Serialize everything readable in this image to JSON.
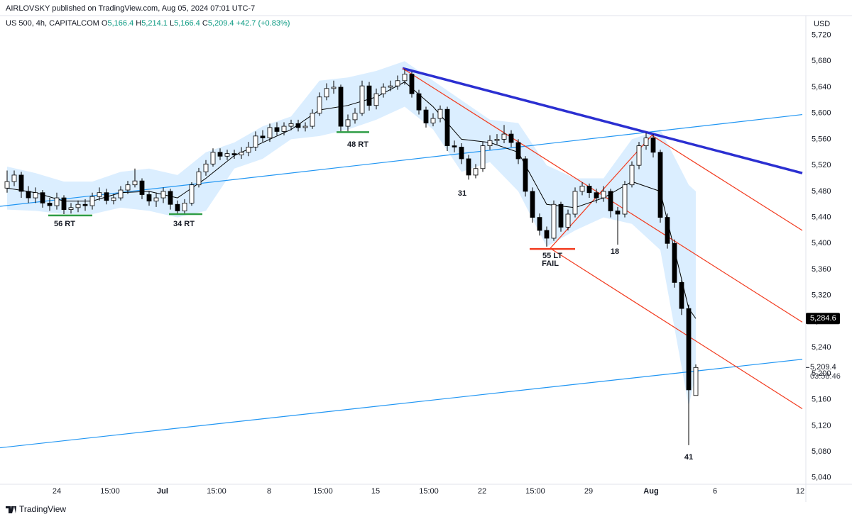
{
  "chart_data": {
    "type": "candlestick",
    "publisher": "AIRLOVSKY published on TradingView.com, Aug 05, 2024 07:01 UTC-7",
    "symbol": "US 500, 4h, CAPITALCOM",
    "ohlc": [
      {
        "label": "O",
        "value": "5,166.4"
      },
      {
        "label": "H",
        "value": "5,214.1"
      },
      {
        "label": "L",
        "value": "5,166.4"
      },
      {
        "label": "C",
        "value": "5,209.4"
      }
    ],
    "change": "+42.7 (+0.83%)",
    "currency": "USD",
    "brand": "TradingView",
    "up_color": "#ffffff",
    "down_color": "#000000",
    "x": [
      0,
      2,
      4,
      6,
      8,
      10,
      12,
      14,
      16,
      18,
      20,
      22,
      24,
      26,
      28,
      30,
      32,
      34,
      36,
      38,
      40,
      42,
      44,
      46,
      48,
      50,
      52,
      54,
      56,
      58,
      60,
      62,
      64,
      66,
      68,
      70,
      72,
      74,
      76,
      78,
      80,
      82,
      84,
      86,
      88,
      90,
      92,
      94,
      96,
      98,
      100,
      102,
      104,
      106,
      108,
      110,
      112,
      114,
      116,
      118,
      120,
      122,
      124,
      126,
      128,
      130,
      132,
      134,
      136,
      138,
      140,
      142,
      144,
      146,
      148,
      150,
      152,
      154,
      156,
      158,
      160,
      162,
      164,
      166,
      168,
      170,
      172,
      174,
      176,
      178,
      180,
      182,
      184,
      186,
      188,
      190,
      192,
      194
    ],
    "open": [
      5485,
      5495,
      5505,
      5480,
      5470,
      5478,
      5462,
      5458,
      5470,
      5452,
      5455,
      5460,
      5458,
      5472,
      5478,
      5466,
      5470,
      5482,
      5490,
      5496,
      5475,
      5465,
      5470,
      5480,
      5460,
      5450,
      5462,
      5490,
      5510,
      5522,
      5540,
      5534,
      5538,
      5536,
      5540,
      5548,
      5565,
      5562,
      5578,
      5572,
      5580,
      5584,
      5578,
      5580,
      5600,
      5625,
      5638,
      5640,
      5580,
      5590,
      5600,
      5642,
      5612,
      5630,
      5640,
      5642,
      5650,
      5660,
      5630,
      5605,
      5585,
      5592,
      5606,
      5550,
      5548,
      5530,
      5505,
      5515,
      5550,
      5558,
      5560,
      5568,
      5555,
      5530,
      5480,
      5440,
      5420,
      5408,
      5460,
      5425,
      5445,
      5480,
      5488,
      5478,
      5470,
      5480,
      5450,
      5445,
      5490,
      5520,
      5550,
      5562,
      5540,
      5440,
      5400,
      5340,
      5300,
      5166.4
    ],
    "high": [
      5512,
      5512,
      5510,
      5488,
      5486,
      5482,
      5470,
      5478,
      5474,
      5462,
      5466,
      5468,
      5478,
      5486,
      5484,
      5476,
      5488,
      5496,
      5515,
      5500,
      5480,
      5478,
      5486,
      5484,
      5466,
      5468,
      5494,
      5516,
      5528,
      5546,
      5546,
      5544,
      5544,
      5548,
      5556,
      5572,
      5574,
      5584,
      5586,
      5586,
      5590,
      5590,
      5586,
      5606,
      5632,
      5646,
      5650,
      5644,
      5598,
      5608,
      5650,
      5648,
      5638,
      5646,
      5650,
      5658,
      5668,
      5664,
      5636,
      5610,
      5600,
      5612,
      5610,
      5558,
      5554,
      5536,
      5522,
      5556,
      5566,
      5568,
      5582,
      5574,
      5560,
      5534,
      5486,
      5446,
      5426,
      5466,
      5464,
      5452,
      5486,
      5494,
      5492,
      5484,
      5488,
      5484,
      5456,
      5496,
      5526,
      5556,
      5570,
      5568,
      5544,
      5446,
      5406,
      5346,
      5306,
      5214.1
    ],
    "low": [
      5478,
      5488,
      5470,
      5462,
      5462,
      5455,
      5450,
      5452,
      5445,
      5446,
      5448,
      5450,
      5452,
      5466,
      5460,
      5460,
      5466,
      5476,
      5486,
      5468,
      5458,
      5456,
      5462,
      5452,
      5444,
      5446,
      5458,
      5486,
      5504,
      5518,
      5528,
      5528,
      5530,
      5530,
      5534,
      5542,
      5556,
      5556,
      5566,
      5566,
      5574,
      5572,
      5572,
      5576,
      5596,
      5620,
      5630,
      5572,
      5572,
      5584,
      5596,
      5604,
      5606,
      5624,
      5634,
      5636,
      5644,
      5624,
      5598,
      5578,
      5580,
      5586,
      5542,
      5540,
      5522,
      5498,
      5500,
      5510,
      5544,
      5552,
      5554,
      5548,
      5522,
      5472,
      5432,
      5412,
      5395,
      5404,
      5418,
      5420,
      5440,
      5474,
      5470,
      5462,
      5464,
      5440,
      5398,
      5440,
      5486,
      5514,
      5544,
      5532,
      5432,
      5392,
      5332,
      5290,
      5090,
      5166.4
    ],
    "close": [
      5495,
      5505,
      5480,
      5470,
      5478,
      5462,
      5458,
      5470,
      5452,
      5455,
      5460,
      5458,
      5472,
      5478,
      5466,
      5470,
      5482,
      5490,
      5496,
      5475,
      5465,
      5470,
      5480,
      5460,
      5450,
      5462,
      5490,
      5510,
      5522,
      5540,
      5534,
      5538,
      5536,
      5540,
      5548,
      5565,
      5562,
      5578,
      5572,
      5580,
      5584,
      5578,
      5580,
      5600,
      5625,
      5638,
      5640,
      5580,
      5590,
      5600,
      5642,
      5612,
      5630,
      5640,
      5642,
      5650,
      5660,
      5630,
      5605,
      5585,
      5592,
      5606,
      5550,
      5548,
      5530,
      5505,
      5515,
      5550,
      5558,
      5560,
      5568,
      5555,
      5530,
      5480,
      5440,
      5420,
      5408,
      5460,
      5425,
      5445,
      5480,
      5488,
      5478,
      5470,
      5480,
      5450,
      5445,
      5490,
      5520,
      5550,
      5562,
      5540,
      5440,
      5400,
      5340,
      5300,
      5175,
      5209.4
    ],
    "band": {
      "color": "#dbeeff",
      "x": [
        0,
        8,
        16,
        24,
        32,
        40,
        48,
        56,
        64,
        72,
        80,
        88,
        96,
        104,
        112,
        120,
        128,
        136,
        144,
        152,
        160,
        168,
        176,
        184,
        192,
        194
      ],
      "upper": [
        5518,
        5508,
        5495,
        5495,
        5510,
        5515,
        5505,
        5540,
        5555,
        5580,
        5595,
        5650,
        5655,
        5665,
        5680,
        5650,
        5620,
        5590,
        5585,
        5520,
        5500,
        5500,
        5560,
        5575,
        5490,
        5480
      ],
      "lower": [
        5452,
        5450,
        5445,
        5445,
        5455,
        5450,
        5440,
        5450,
        5515,
        5530,
        5560,
        5565,
        5575,
        5590,
        5610,
        5575,
        5510,
        5525,
        5480,
        5395,
        5420,
        5440,
        5430,
        5390,
        5150,
        5200
      ]
    },
    "ma": {
      "color": "#000000",
      "x": [
        0,
        8,
        16,
        24,
        32,
        40,
        48,
        56,
        64,
        72,
        80,
        88,
        96,
        104,
        112,
        120,
        128,
        136,
        144,
        152,
        160,
        168,
        176,
        184,
        192,
        194
      ],
      "values": [
        5485,
        5478,
        5465,
        5465,
        5478,
        5480,
        5470,
        5500,
        5535,
        5555,
        5575,
        5605,
        5612,
        5625,
        5648,
        5610,
        5560,
        5555,
        5540,
        5460,
        5455,
        5470,
        5495,
        5480,
        5300,
        5284.6
      ]
    },
    "drawings": [
      {
        "color": "#2196f3",
        "width": 1.2,
        "x": [
          -2,
          224
        ],
        "y": [
          5457,
          5598
        ]
      },
      {
        "color": "#2196f3",
        "width": 1.2,
        "x": [
          -2,
          224
        ],
        "y": [
          5086,
          5222
        ]
      },
      {
        "color": "#2b2fd1",
        "width": 3.5,
        "x": [
          111.4,
          224
        ],
        "y": [
          5669,
          5508
        ]
      },
      {
        "color": "#f23b1f",
        "width": 1.2,
        "x": [
          111.4,
          224
        ],
        "y": [
          5669,
          5279
        ]
      },
      {
        "color": "#f23b1f",
        "width": 1.2,
        "x": [
          181.6,
          224
        ],
        "y": [
          5566,
          5420
        ]
      },
      {
        "color": "#f23b1f",
        "width": 1.2,
        "x": [
          153,
          224
        ],
        "y": [
          5392.5,
          5146
        ]
      },
      {
        "color": "#f23b1f",
        "width": 1.2,
        "x": [
          153,
          181.6
        ],
        "y": [
          5392.5,
          5566
        ]
      }
    ],
    "levels": [
      {
        "color": "#2e9d46",
        "x": [
          11.6,
          24
        ],
        "y": 5443
      },
      {
        "color": "#2e9d46",
        "x": [
          45.6,
          55
        ],
        "y": 5445
      },
      {
        "color": "#2e9d46",
        "x": [
          92.8,
          102
        ],
        "y": 5571
      },
      {
        "color": "#f23b1f",
        "x": [
          147.2,
          160
        ],
        "y": 5391.5
      }
    ],
    "annotations": [
      "56 RT",
      "34 RT",
      "48 RT",
      "31",
      "55 LT",
      "FAIL",
      "18",
      "41"
    ],
    "xlim": [
      -2,
      224
    ],
    "xticks": [
      {
        "value": 14,
        "label": "24"
      },
      {
        "value": 29,
        "label": "15:00"
      },
      {
        "value": 43.8,
        "label": "Jul"
      },
      {
        "value": 59,
        "label": "15:00"
      },
      {
        "value": 73.8,
        "label": "8"
      },
      {
        "value": 89,
        "label": "15:00"
      },
      {
        "value": 103.8,
        "label": "15"
      },
      {
        "value": 118.8,
        "label": "15:00"
      },
      {
        "value": 133.8,
        "label": "22"
      },
      {
        "value": 148.8,
        "label": "15:00"
      },
      {
        "value": 163.8,
        "label": "29"
      },
      {
        "value": 181.4,
        "label": "Aug"
      },
      {
        "value": 199.4,
        "label": "6"
      },
      {
        "value": 223.4,
        "label": "12"
      }
    ],
    "ylim": [
      5030,
      5750
    ],
    "yticks": [
      {
        "value": 5040,
        "label": "5,040"
      },
      {
        "value": 5080,
        "label": "5,080"
      },
      {
        "value": 5120,
        "label": "5,120"
      },
      {
        "value": 5160,
        "label": "5,160"
      },
      {
        "value": 5200,
        "label": "5,200"
      },
      {
        "value": 5240,
        "label": "5,240"
      },
      {
        "value": 5280,
        "label": "5,280"
      },
      {
        "value": 5320,
        "label": "5,320"
      },
      {
        "value": 5360,
        "label": "5,360"
      },
      {
        "value": 5400,
        "label": "5,400"
      },
      {
        "value": 5440,
        "label": "5,440"
      },
      {
        "value": 5480,
        "label": "5,480"
      },
      {
        "value": 5520,
        "label": "5,520"
      },
      {
        "value": 5560,
        "label": "5,560"
      },
      {
        "value": 5600,
        "label": "5,600"
      },
      {
        "value": 5640,
        "label": "5,640"
      },
      {
        "value": 5680,
        "label": "5,680"
      },
      {
        "value": 5720,
        "label": "5,720"
      }
    ],
    "ma_label": {
      "value": 5284.6,
      "label": "5,284.6"
    },
    "price_label": {
      "value": 5209.4,
      "label": "5,209.4"
    },
    "countdown": "03:58:46"
  }
}
